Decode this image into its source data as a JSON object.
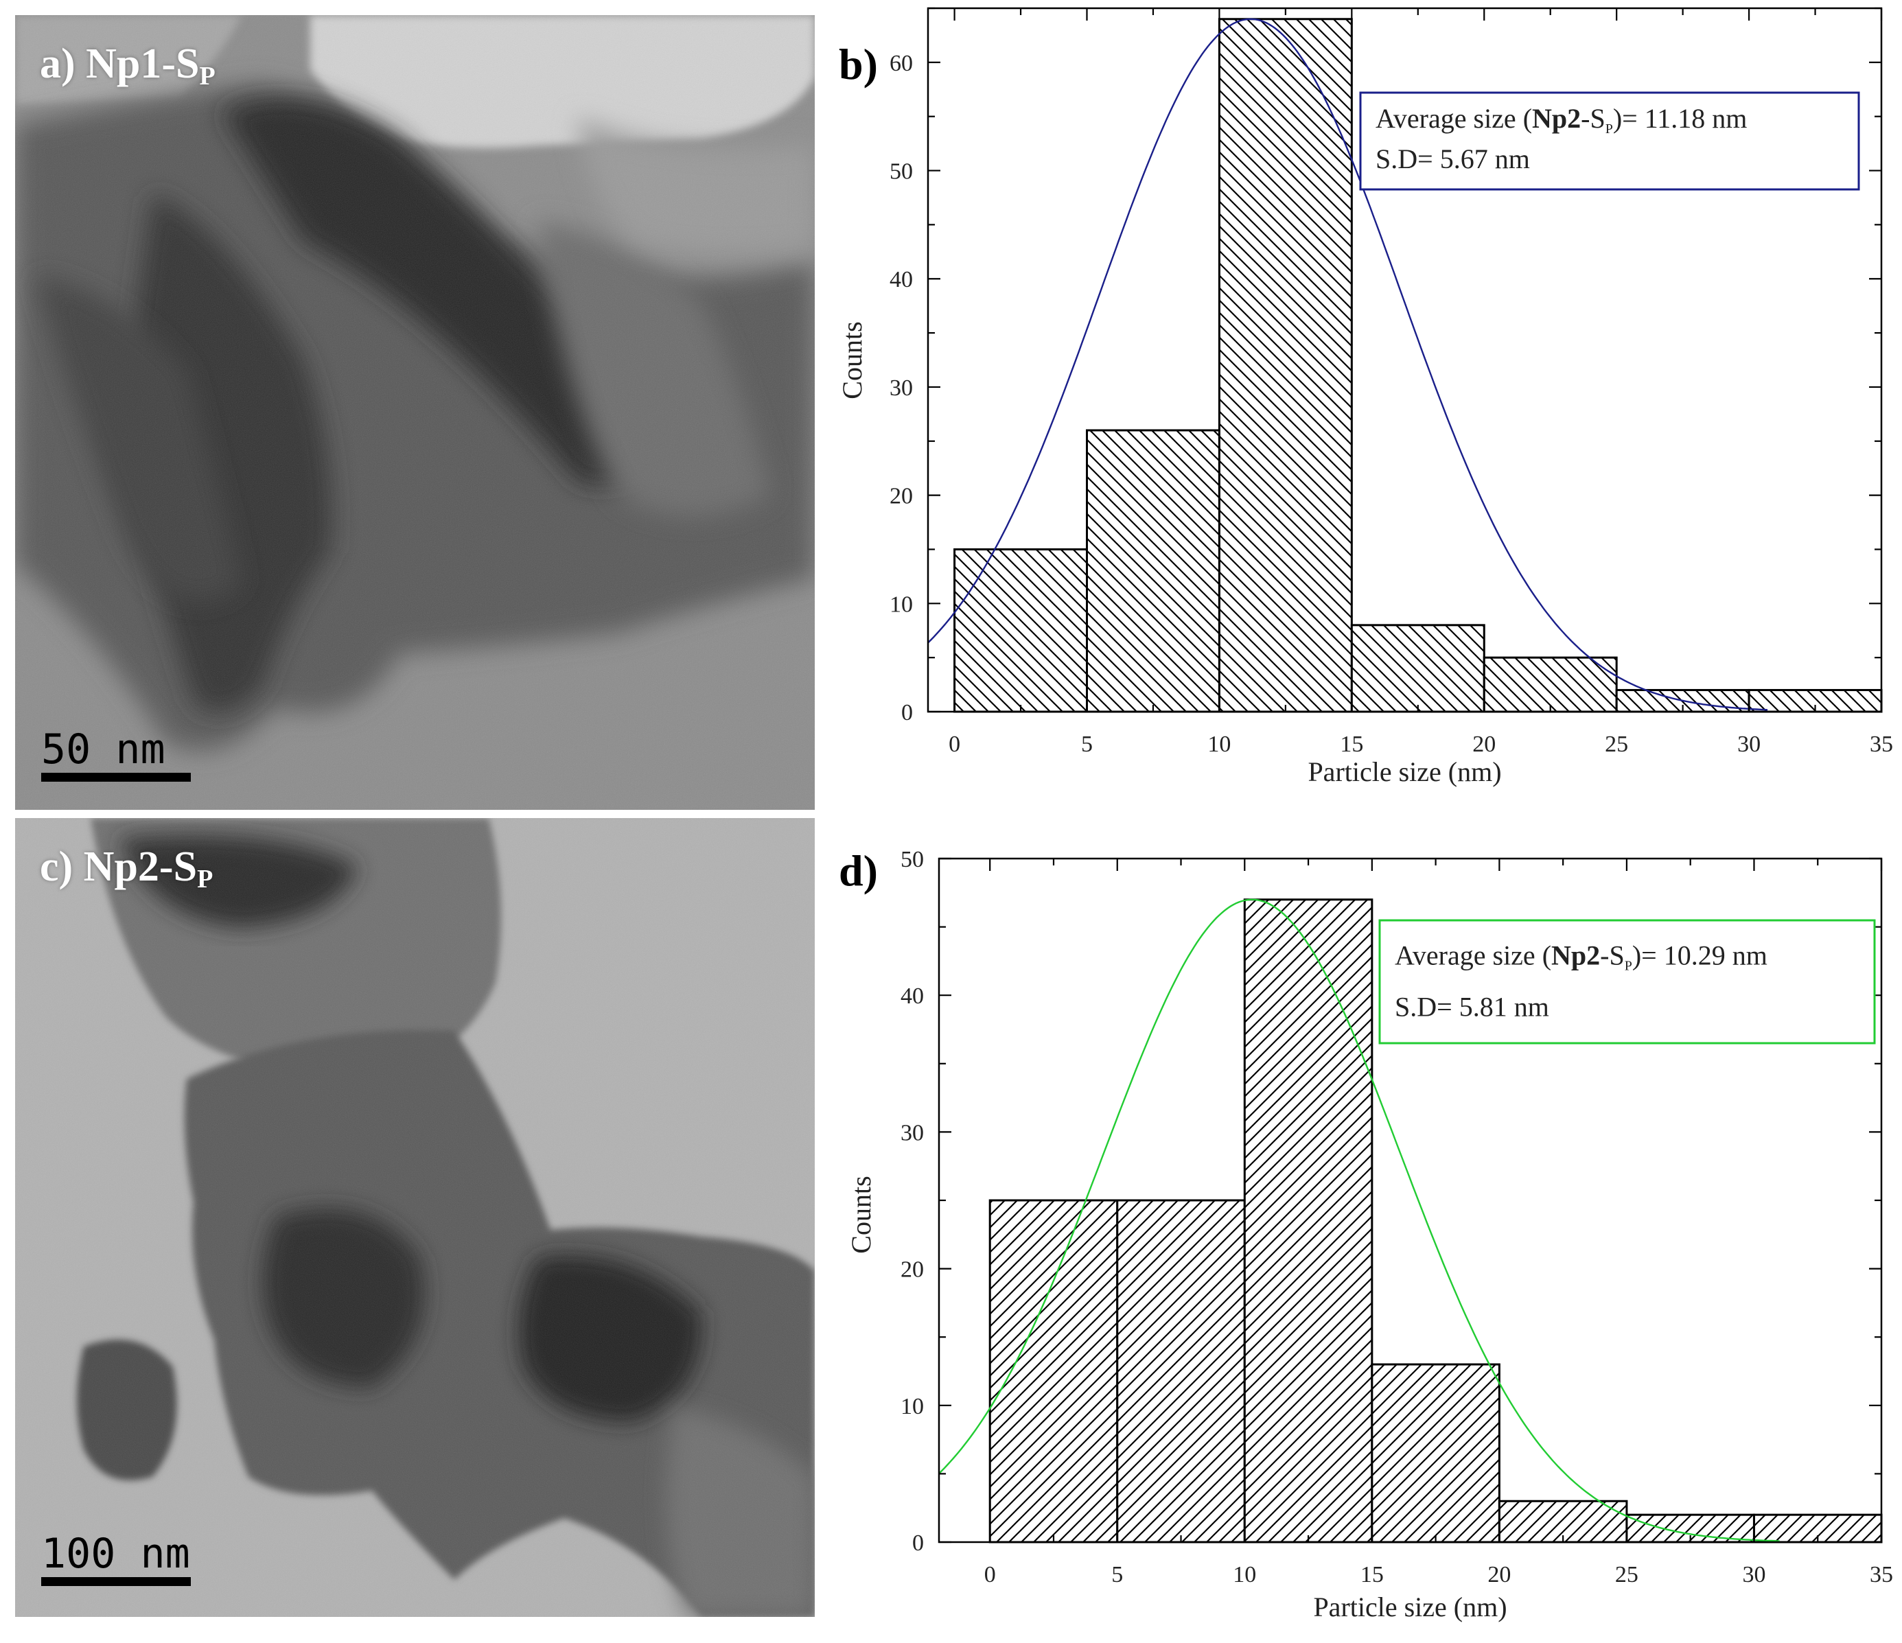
{
  "panels": {
    "a": {
      "label": "a) Np1-S",
      "label_sub": "P",
      "scale": "50 nm"
    },
    "c": {
      "label": "c) Np2-S",
      "label_sub": "P",
      "scale": "100 nm"
    }
  },
  "chart_data": [
    {
      "id": "b",
      "panel_label": "b)",
      "type": "bar",
      "categories": [
        "0-5",
        "5-10",
        "10-15",
        "15-20",
        "20-25",
        "25-30",
        "30-35"
      ],
      "bin_edges": [
        0,
        5,
        10,
        15,
        20,
        25,
        30,
        35
      ],
      "values": [
        15,
        26,
        64,
        8,
        5,
        2,
        2
      ],
      "xlabel": "Particle size (nm)",
      "ylabel": "Counts",
      "xlim": [
        -1,
        35
      ],
      "ylim": [
        0,
        65
      ],
      "xticks": [
        0,
        5,
        10,
        15,
        20,
        25,
        30,
        35
      ],
      "yticks": [
        0,
        10,
        20,
        30,
        40,
        50,
        60
      ],
      "fit": {
        "mean": 11.18,
        "sd": 5.67,
        "peak": 64,
        "x_range": [
          -1,
          30.7
        ]
      },
      "hatch": "backslash",
      "grid": false,
      "annotation": {
        "line1_prefix": "Average size (",
        "line1_bold": "Np2",
        "line1_mid": "-S",
        "line1_sub": "P",
        "line1_suffix": ")= 11.18 nm",
        "line2": "S.D= 5.67 nm"
      },
      "colors": {
        "fit": "#1a1f8a",
        "box": "#1a1f8a",
        "bar_fill": "#ffffff",
        "stroke": "#000000"
      }
    },
    {
      "id": "d",
      "panel_label": "d)",
      "type": "bar",
      "categories": [
        "0-5",
        "5-10",
        "10-15",
        "15-20",
        "20-25",
        "25-30",
        "30-35"
      ],
      "bin_edges": [
        0,
        5,
        10,
        15,
        20,
        25,
        30,
        35
      ],
      "values": [
        25,
        25,
        47,
        13,
        3,
        2,
        2
      ],
      "xlabel": "Particle size (nm)",
      "ylabel": "Counts",
      "xlim": [
        -2,
        35
      ],
      "ylim": [
        0,
        50
      ],
      "xticks": [
        0,
        5,
        10,
        15,
        20,
        25,
        30,
        35
      ],
      "yticks": [
        0,
        10,
        20,
        30,
        40,
        50
      ],
      "fit": {
        "mean": 10.29,
        "sd": 5.81,
        "peak": 47,
        "x_range": [
          -2,
          31
        ]
      },
      "hatch": "slash",
      "grid": false,
      "annotation": {
        "line1_prefix": "Average size (",
        "line1_bold": "Np2",
        "line1_mid": "-S",
        "line1_sub": "P",
        "line1_suffix": ")= 10.29 nm",
        "line2": "S.D= 5.81 nm"
      },
      "colors": {
        "fit": "#22cc33",
        "box": "#22cc33",
        "bar_fill": "#ffffff",
        "stroke": "#000000"
      }
    }
  ]
}
